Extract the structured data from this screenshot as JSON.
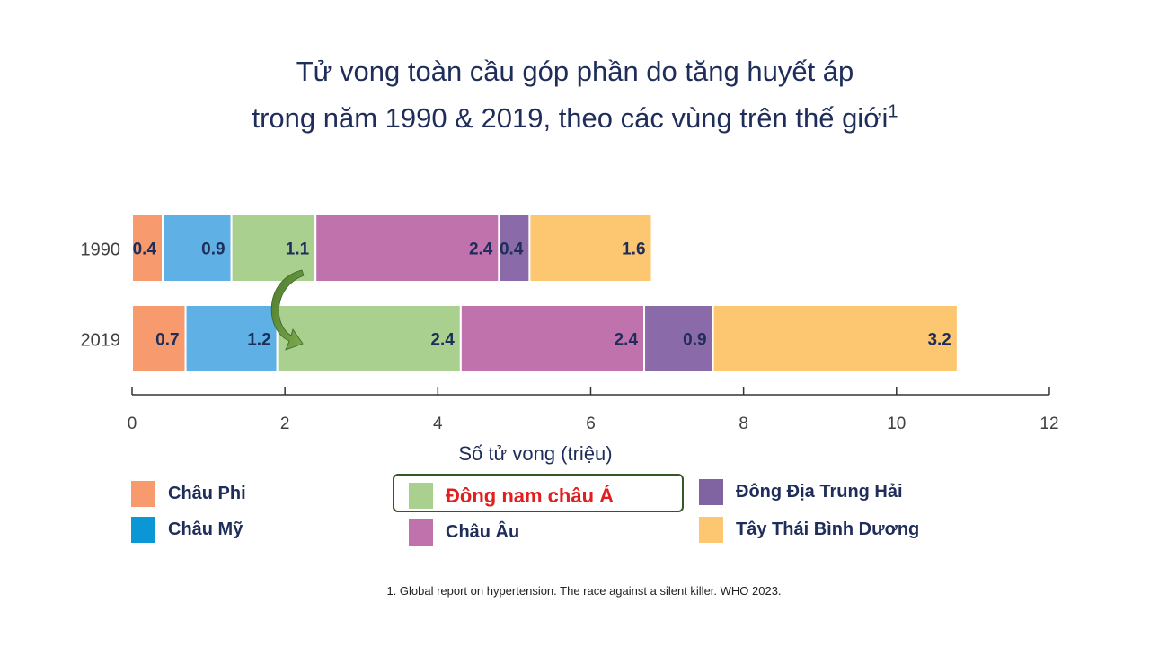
{
  "title": {
    "line1": "Tử vong toàn cầu góp phần do tăng huyết áp",
    "line2": "trong năm 1990 & 2019, theo các vùng trên thế giới",
    "sup": "1"
  },
  "chart_data": {
    "type": "bar",
    "orientation": "horizontal",
    "stacked": true,
    "categories": [
      "1990",
      "2019"
    ],
    "series": [
      {
        "name": "Châu Phi",
        "color": "#f79b6f",
        "values": [
          0.4,
          0.7
        ]
      },
      {
        "name": "Châu Mỹ",
        "color": "#5fb0e5",
        "values": [
          0.9,
          1.2
        ]
      },
      {
        "name": "Đông nam châu Á",
        "color": "#a9d08e",
        "values": [
          1.1,
          2.4
        ]
      },
      {
        "name": "Châu Âu",
        "color": "#c072ad",
        "values": [
          2.4,
          2.4
        ]
      },
      {
        "name": "Đông Địa Trung Hải",
        "color": "#8a6aa9",
        "values": [
          0.4,
          0.9
        ]
      },
      {
        "name": "Tây Thái Bình Dương",
        "color": "#fdc670",
        "values": [
          1.6,
          3.2
        ]
      }
    ],
    "xlabel": "Số tử vong (triệu)",
    "xlim": [
      0,
      12
    ],
    "xticks": [
      0,
      2,
      4,
      6,
      8,
      10,
      12
    ],
    "grid": false
  },
  "legend": [
    {
      "label": "Châu Phi",
      "color": "#f79b6f"
    },
    {
      "label": "Châu Mỹ",
      "color": "#0b96d6"
    },
    {
      "label": "Đông nam châu Á",
      "color": "#a9d08e",
      "text_color": "#e02020",
      "highlighted": true
    },
    {
      "label": "Châu Âu",
      "color": "#c072ad"
    },
    {
      "label": "Đông Địa Trung Hải",
      "color": "#8064a2"
    },
    {
      "label": "Tây Thái Bình Dương",
      "color": "#fdc670"
    }
  ],
  "footnote": "1. Global report on hypertension. The race against a silent killer. WHO 2023."
}
